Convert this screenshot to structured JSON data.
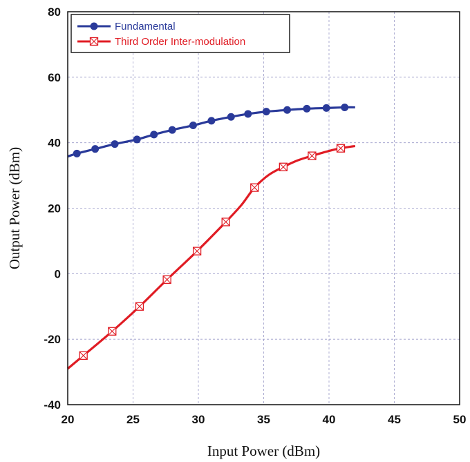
{
  "chart_data": {
    "type": "line",
    "xlabel": "Input Power (dBm)",
    "ylabel": "Output Power (dBm)",
    "xlim": [
      20,
      50
    ],
    "ylim": [
      -40,
      80
    ],
    "xticks": [
      "20",
      "25",
      "30",
      "35",
      "40",
      "45",
      "50"
    ],
    "yticks": [
      "-40",
      "-20",
      "0",
      "20",
      "40",
      "60",
      "80"
    ],
    "grid": true,
    "legend_position": "top-left",
    "series": [
      {
        "name": "Fundamental",
        "color": "#2a3a9a",
        "marker": "filled-circle",
        "x": [
          20.0,
          20.7,
          22.1,
          23.6,
          25.3,
          26.6,
          28.0,
          29.6,
          31.0,
          32.5,
          33.8,
          35.2,
          36.8,
          38.3,
          39.8,
          41.2,
          42.0
        ],
        "y": [
          35.8,
          36.7,
          38.1,
          39.6,
          41.0,
          42.5,
          43.9,
          45.3,
          46.7,
          47.9,
          48.8,
          49.5,
          50.0,
          50.4,
          50.6,
          50.8,
          50.8
        ],
        "marker_x": [
          20.7,
          22.1,
          23.6,
          25.3,
          26.6,
          28.0,
          29.6,
          31.0,
          32.5,
          33.8,
          35.2,
          36.8,
          38.3,
          39.8,
          41.2
        ],
        "marker_y": [
          36.7,
          38.1,
          39.6,
          41.0,
          42.5,
          43.9,
          45.3,
          46.7,
          47.9,
          48.8,
          49.5,
          50.0,
          50.4,
          50.6,
          50.8
        ]
      },
      {
        "name": "Third Order Inter-modulation",
        "color": "#e01c24",
        "marker": "boxed-x",
        "x": [
          20.0,
          21.2,
          23.4,
          25.5,
          27.6,
          29.9,
          32.1,
          33.3,
          34.3,
          35.4,
          36.5,
          37.6,
          38.7,
          40.0,
          40.9,
          42.0
        ],
        "y": [
          -29.0,
          -25.0,
          -17.6,
          -10.0,
          -1.8,
          6.9,
          15.8,
          21.0,
          26.3,
          30.2,
          32.6,
          34.6,
          36.0,
          37.5,
          38.3,
          39.0
        ],
        "marker_x": [
          21.2,
          23.4,
          25.5,
          27.6,
          29.9,
          32.1,
          34.3,
          36.5,
          38.7,
          40.9
        ],
        "marker_y": [
          -25.0,
          -17.6,
          -10.0,
          -1.8,
          6.9,
          15.8,
          26.3,
          32.6,
          36.0,
          38.3
        ]
      }
    ]
  }
}
